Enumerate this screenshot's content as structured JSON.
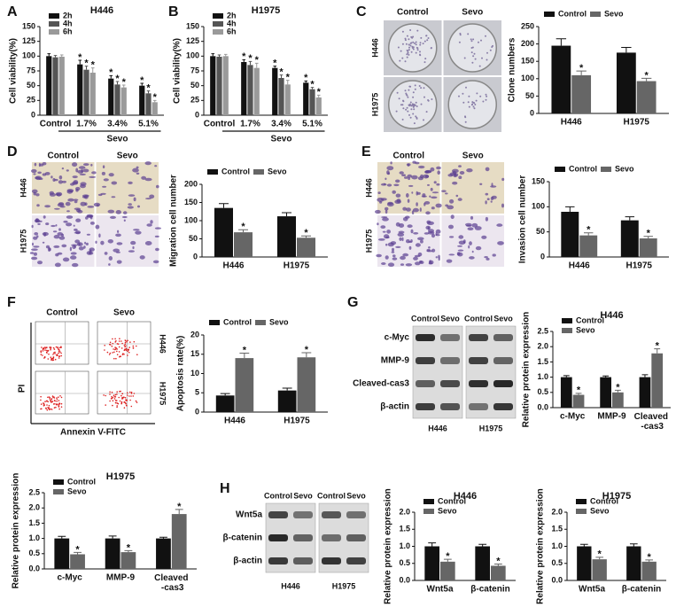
{
  "panel_letters": [
    "A",
    "B",
    "C",
    "D",
    "E",
    "F",
    "G",
    "H"
  ],
  "images": [
    {
      "kind": "colony",
      "col_labels": [
        "Control",
        "Sevo"
      ],
      "row_labels": [
        "H446",
        "H1975"
      ]
    },
    {
      "kind": "micrograph",
      "col_labels": [
        "Control",
        "Sevo"
      ],
      "row_labels": [
        "H446",
        "H1975"
      ]
    },
    {
      "kind": "micrograph",
      "col_labels": [
        "Control",
        "Sevo"
      ],
      "row_labels": [
        "H446",
        "H1975"
      ]
    },
    {
      "kind": "flow",
      "col_labels": [
        "Control",
        "Sevo"
      ],
      "row_labels": [
        "H446",
        "H1975"
      ],
      "x_label": "Annexin V-FITC",
      "y_label": "PI"
    },
    {
      "kind": "blot",
      "col_labels": [
        "Control",
        "Sevo",
        "Control",
        "Sevo"
      ],
      "row_labels": [
        "c-Myc",
        "MMP-9",
        "Cleaved-cas3",
        "β-actin"
      ],
      "group_labels": [
        "H446",
        "H1975"
      ]
    },
    {
      "kind": "blot",
      "col_labels": [
        "Control",
        "Sevo",
        "Control",
        "Sevo"
      ],
      "row_labels": [
        "Wnt5a",
        "β-catenin",
        "β-actin"
      ],
      "group_labels": [
        "H446",
        "H1975"
      ]
    }
  ],
  "chart_data": [
    {
      "type": "bar",
      "title": "H446",
      "ylabel": "Cell viability(%)",
      "categories": [
        "Control",
        "1.7%",
        "3.4%",
        "5.1%"
      ],
      "group_label": "Sevo",
      "series": [
        {
          "name": "2h",
          "color": "#111111",
          "values": [
            100,
            86,
            62,
            50
          ],
          "errors": [
            4,
            7,
            5,
            4
          ],
          "annotations": [
            null,
            "*",
            "*",
            "*"
          ]
        },
        {
          "name": "4h",
          "color": "#555555",
          "values": [
            98,
            77,
            52,
            37
          ],
          "errors": [
            3,
            6,
            5,
            4
          ],
          "annotations": [
            null,
            "*",
            "*",
            "*"
          ]
        },
        {
          "name": "6h",
          "color": "#9a9a9a",
          "values": [
            99,
            72,
            47,
            22
          ],
          "errors": [
            3,
            8,
            4,
            3
          ],
          "annotations": [
            null,
            "*",
            "*",
            "*"
          ]
        }
      ],
      "ylim": [
        0,
        150
      ],
      "yticks": [
        0,
        25,
        50,
        75,
        100,
        125,
        150
      ],
      "legend": "top-left"
    },
    {
      "type": "bar",
      "title": "H1975",
      "ylabel": "Cell viability(%)",
      "categories": [
        "Control",
        "1.7%",
        "3.4%",
        "5.1%"
      ],
      "group_label": "Sevo",
      "series": [
        {
          "name": "2h",
          "color": "#111111",
          "values": [
            100,
            90,
            80,
            55
          ],
          "errors": [
            4,
            4,
            3,
            3
          ],
          "annotations": [
            null,
            "*",
            "*",
            "*"
          ]
        },
        {
          "name": "4h",
          "color": "#555555",
          "values": [
            99,
            85,
            63,
            44
          ],
          "errors": [
            3,
            6,
            5,
            3
          ],
          "annotations": [
            null,
            "*",
            "*",
            "*"
          ]
        },
        {
          "name": "6h",
          "color": "#9a9a9a",
          "values": [
            100,
            80,
            52,
            30
          ],
          "errors": [
            3,
            8,
            7,
            4
          ],
          "annotations": [
            null,
            "*",
            "*",
            "*"
          ]
        }
      ],
      "ylim": [
        0,
        150
      ],
      "yticks": [
        0,
        25,
        50,
        75,
        100,
        125,
        150
      ],
      "legend": "top-left"
    },
    {
      "type": "bar",
      "ylabel": "Clone numbers",
      "categories": [
        "H446",
        "H1975"
      ],
      "series": [
        {
          "name": "Control",
          "color": "#111111",
          "values": [
            195,
            175
          ],
          "errors": [
            20,
            15
          ],
          "annotations": [
            null,
            null
          ]
        },
        {
          "name": "Sevo",
          "color": "#666666",
          "values": [
            110,
            93
          ],
          "errors": [
            12,
            8
          ],
          "annotations": [
            "*",
            "*"
          ]
        }
      ],
      "ylim": [
        0,
        250
      ],
      "yticks": [
        0,
        50,
        100,
        150,
        200,
        250
      ],
      "legend": "top"
    },
    {
      "type": "bar",
      "ylabel": "Migration cell number",
      "categories": [
        "H446",
        "H1975"
      ],
      "series": [
        {
          "name": "Control",
          "color": "#111111",
          "values": [
            135,
            112
          ],
          "errors": [
            12,
            10
          ],
          "annotations": [
            null,
            null
          ]
        },
        {
          "name": "Sevo",
          "color": "#666666",
          "values": [
            68,
            53
          ],
          "errors": [
            7,
            5
          ],
          "annotations": [
            "*",
            "*"
          ]
        }
      ],
      "ylim": [
        0,
        200
      ],
      "yticks": [
        0,
        50,
        100,
        150,
        200
      ],
      "legend": "top"
    },
    {
      "type": "bar",
      "ylabel": "Invasion cell number",
      "categories": [
        "H446",
        "H1975"
      ],
      "series": [
        {
          "name": "Control",
          "color": "#111111",
          "values": [
            90,
            73
          ],
          "errors": [
            10,
            7
          ],
          "annotations": [
            null,
            null
          ]
        },
        {
          "name": "Sevo",
          "color": "#666666",
          "values": [
            43,
            37
          ],
          "errors": [
            5,
            4
          ],
          "annotations": [
            "*",
            "*"
          ]
        }
      ],
      "ylim": [
        0,
        150
      ],
      "yticks": [
        0,
        50,
        100,
        150
      ],
      "legend": "top"
    },
    {
      "type": "bar",
      "ylabel": "Apoptosis rate(%)",
      "categories": [
        "H446",
        "H1975"
      ],
      "series": [
        {
          "name": "Control",
          "color": "#111111",
          "values": [
            4.3,
            5.6
          ],
          "errors": [
            0.5,
            0.6
          ],
          "annotations": [
            null,
            null
          ]
        },
        {
          "name": "Sevo",
          "color": "#666666",
          "values": [
            14,
            14.2
          ],
          "errors": [
            1.3,
            1.2
          ],
          "annotations": [
            "*",
            "*"
          ]
        }
      ],
      "ylim": [
        0,
        20
      ],
      "yticks": [
        0,
        5,
        10,
        15,
        20
      ],
      "legend": "top"
    },
    {
      "type": "bar",
      "title": "H446",
      "ylabel": "Relative protein expression",
      "categories": [
        "c-Myc",
        "MMP-9",
        "Cleaved\n-cas3"
      ],
      "series": [
        {
          "name": "Control",
          "color": "#111111",
          "values": [
            1.0,
            1.0,
            1.0
          ],
          "errors": [
            0.05,
            0.04,
            0.08
          ],
          "annotations": [
            null,
            null,
            null
          ]
        },
        {
          "name": "Sevo",
          "color": "#666666",
          "values": [
            0.42,
            0.5,
            1.78
          ],
          "errors": [
            0.05,
            0.07,
            0.15
          ],
          "annotations": [
            "*",
            "*",
            "*"
          ]
        }
      ],
      "ylim": [
        0,
        2.5
      ],
      "yticks": [
        {
          "value": 0,
          "label": "0.0"
        },
        0.5,
        {
          "value": 1,
          "label": "1.0"
        },
        1.5,
        {
          "value": 2,
          "label": "2.0"
        },
        2.5
      ],
      "legend": "top-left"
    },
    {
      "type": "bar",
      "title": "H1975",
      "ylabel": "Relative protein expression",
      "categories": [
        "c-Myc",
        "MMP-9",
        "Cleaved\n-cas3"
      ],
      "series": [
        {
          "name": "Control",
          "color": "#111111",
          "values": [
            1.0,
            1.0,
            1.0
          ],
          "errors": [
            0.07,
            0.08,
            0.04
          ],
          "annotations": [
            null,
            null,
            null
          ]
        },
        {
          "name": "Sevo",
          "color": "#666666",
          "values": [
            0.48,
            0.55,
            1.8
          ],
          "errors": [
            0.06,
            0.05,
            0.15
          ],
          "annotations": [
            "*",
            "*",
            "*"
          ]
        }
      ],
      "ylim": [
        0,
        2.5
      ],
      "yticks": [
        {
          "value": 0,
          "label": "0.0"
        },
        0.5,
        {
          "value": 1,
          "label": "1.0"
        },
        1.5,
        {
          "value": 2,
          "label": "2.0"
        },
        2.5
      ],
      "legend": "top-left"
    },
    {
      "type": "bar",
      "title": "H446",
      "ylabel": "Relative protein expression",
      "categories": [
        "Wnt5a",
        "β-catenin"
      ],
      "series": [
        {
          "name": "Control",
          "color": "#111111",
          "values": [
            1.0,
            1.0
          ],
          "errors": [
            0.1,
            0.06
          ],
          "annotations": [
            null,
            null
          ]
        },
        {
          "name": "Sevo",
          "color": "#666666",
          "values": [
            0.55,
            0.43
          ],
          "errors": [
            0.07,
            0.05
          ],
          "annotations": [
            "*",
            "*"
          ]
        }
      ],
      "ylim": [
        0,
        2
      ],
      "yticks": [
        {
          "value": 0,
          "label": "0.0"
        },
        0.5,
        {
          "value": 1,
          "label": "1.0"
        },
        1.5,
        {
          "value": 2,
          "label": "2.0"
        }
      ],
      "legend": "top-left"
    },
    {
      "type": "bar",
      "title": "H1975",
      "ylabel": "Relative protein expression",
      "categories": [
        "Wnt5a",
        "β-catenin"
      ],
      "series": [
        {
          "name": "Control",
          "color": "#111111",
          "values": [
            1.0,
            1.0
          ],
          "errors": [
            0.06,
            0.07
          ],
          "annotations": [
            null,
            null
          ]
        },
        {
          "name": "Sevo",
          "color": "#666666",
          "values": [
            0.62,
            0.55
          ],
          "errors": [
            0.06,
            0.05
          ],
          "annotations": [
            "*",
            "*"
          ]
        }
      ],
      "ylim": [
        0,
        2
      ],
      "yticks": [
        {
          "value": 0,
          "label": "0.0"
        },
        0.5,
        {
          "value": 1,
          "label": "1.0"
        },
        1.5,
        {
          "value": 2,
          "label": "2.0"
        }
      ],
      "legend": "top-left"
    }
  ]
}
